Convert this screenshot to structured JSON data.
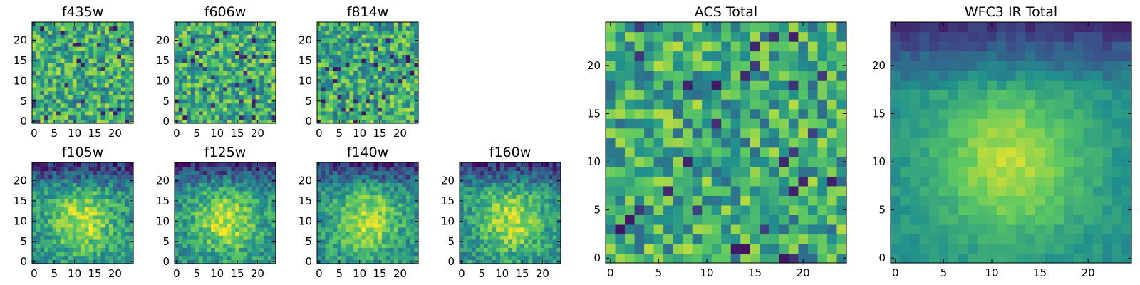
{
  "chart_data": [
    {
      "type": "heatmap",
      "title": "f435w",
      "x_ticks": [
        0,
        5,
        10,
        15,
        20
      ],
      "y_ticks": [
        0,
        5,
        10,
        15,
        20
      ],
      "grid": [
        25,
        25
      ],
      "xlim": [
        0,
        24
      ],
      "ylim": [
        0,
        24
      ],
      "pattern": "noise",
      "seed": 11
    },
    {
      "type": "heatmap",
      "title": "f606w",
      "x_ticks": [
        0,
        5,
        10,
        15,
        20
      ],
      "y_ticks": [
        0,
        5,
        10,
        15,
        20
      ],
      "grid": [
        25,
        25
      ],
      "xlim": [
        0,
        24
      ],
      "ylim": [
        0,
        24
      ],
      "pattern": "noise",
      "seed": 23
    },
    {
      "type": "heatmap",
      "title": "f814w",
      "x_ticks": [
        0,
        5,
        10,
        15,
        20
      ],
      "y_ticks": [
        0,
        5,
        10,
        15,
        20
      ],
      "grid": [
        25,
        25
      ],
      "xlim": [
        0,
        24
      ],
      "ylim": [
        0,
        24
      ],
      "pattern": "noise",
      "seed": 37
    },
    {
      "type": "heatmap",
      "title": "f105w",
      "x_ticks": [
        0,
        5,
        10,
        15,
        20
      ],
      "y_ticks": [
        0,
        5,
        10,
        15,
        20
      ],
      "grid": [
        25,
        25
      ],
      "xlim": [
        0,
        24
      ],
      "ylim": [
        0,
        24
      ],
      "pattern": "source",
      "seed": 41
    },
    {
      "type": "heatmap",
      "title": "f125w",
      "x_ticks": [
        0,
        5,
        10,
        15,
        20
      ],
      "y_ticks": [
        0,
        5,
        10,
        15,
        20
      ],
      "grid": [
        25,
        25
      ],
      "xlim": [
        0,
        24
      ],
      "ylim": [
        0,
        24
      ],
      "pattern": "source",
      "seed": 53
    },
    {
      "type": "heatmap",
      "title": "f140w",
      "x_ticks": [
        0,
        5,
        10,
        15,
        20
      ],
      "y_ticks": [
        0,
        5,
        10,
        15,
        20
      ],
      "grid": [
        25,
        25
      ],
      "xlim": [
        0,
        24
      ],
      "ylim": [
        0,
        24
      ],
      "pattern": "source",
      "seed": 67
    },
    {
      "type": "heatmap",
      "title": "f160w",
      "x_ticks": [
        0,
        5,
        10,
        15,
        20
      ],
      "y_ticks": [
        0,
        5,
        10,
        15,
        20
      ],
      "grid": [
        25,
        25
      ],
      "xlim": [
        0,
        24
      ],
      "ylim": [
        0,
        24
      ],
      "pattern": "source",
      "seed": 79
    },
    {
      "type": "heatmap",
      "title": "ACS Total",
      "x_ticks": [
        0,
        5,
        10,
        15,
        20
      ],
      "y_ticks": [
        0,
        5,
        10,
        15,
        20
      ],
      "grid": [
        25,
        25
      ],
      "xlim": [
        0,
        24
      ],
      "ylim": [
        0,
        24
      ],
      "pattern": "noise",
      "seed": 97
    },
    {
      "type": "heatmap",
      "title": "WFC3 IR Total",
      "x_ticks": [
        0,
        5,
        10,
        15,
        20
      ],
      "y_ticks": [
        0,
        5,
        10,
        15,
        20
      ],
      "grid": [
        25,
        25
      ],
      "xlim": [
        0,
        24
      ],
      "ylim": [
        0,
        24
      ],
      "pattern": "smooth",
      "seed": 101
    }
  ],
  "colormap": [
    "#440154",
    "#3b528b",
    "#21908d",
    "#5dc962",
    "#fde725"
  ]
}
